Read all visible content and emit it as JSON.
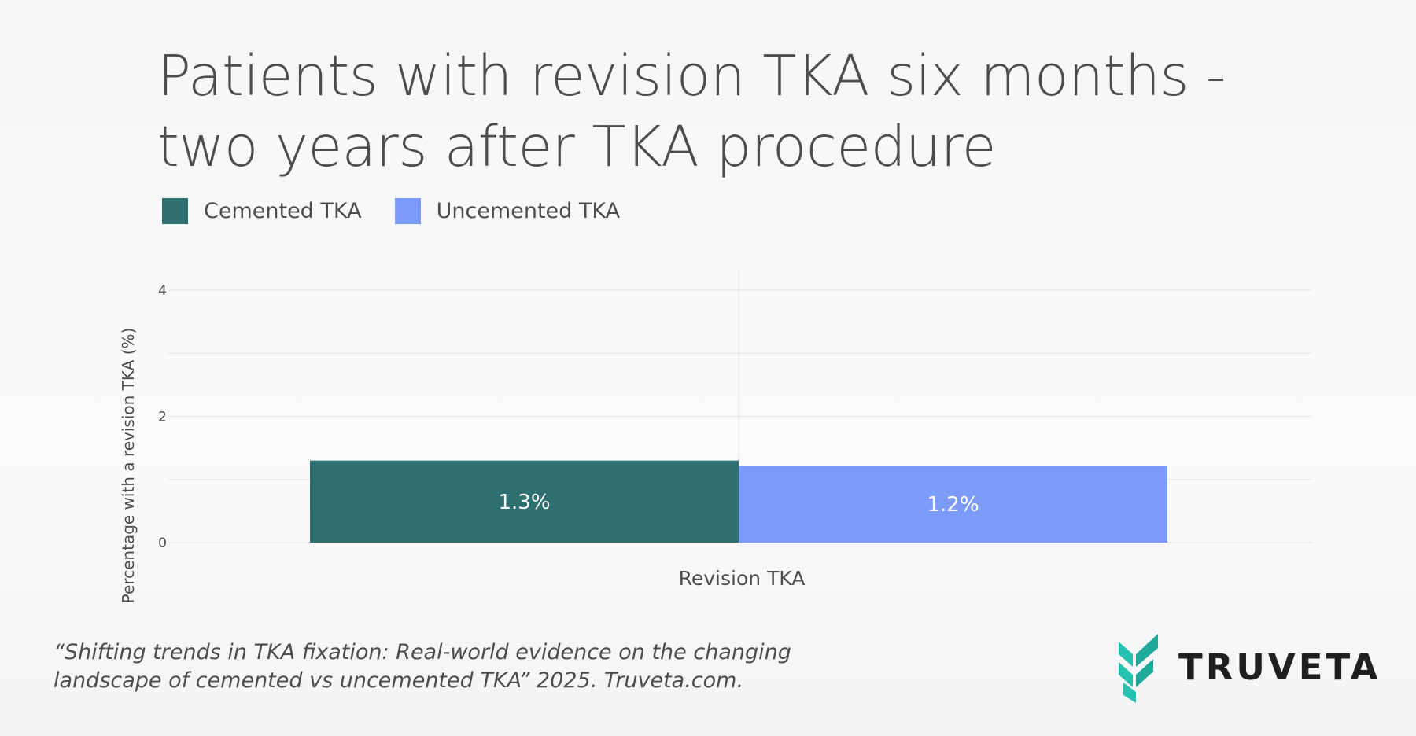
{
  "chart_data": {
    "type": "bar",
    "title": "Patients with revision TKA six months - two years after TKA procedure",
    "title_lines": [
      "Patients with revision TKA six months -",
      "two years after TKA procedure"
    ],
    "categories": [
      "Revision TKA"
    ],
    "series": [
      {
        "name": "Cemented TKA",
        "values": [
          1.3
        ],
        "labels": [
          "1.3%"
        ],
        "color": "#2e7070"
      },
      {
        "name": "Uncemented TKA",
        "values": [
          1.22
        ],
        "labels": [
          "1.2%"
        ],
        "color": "#7b9afa"
      }
    ],
    "xlabel": "",
    "ylabel": "Percentage with a revision TKA (%)",
    "ylim": [
      0,
      4.3
    ],
    "yticks": [
      0,
      2,
      4
    ],
    "grid": true,
    "legend_position": "top-left"
  },
  "citation": {
    "line1": "“Shifting trends in TKA fixation: Real-world evidence on the changing",
    "line2": "landscape of cemented vs uncemented TKA” 2025. Truveta.com."
  },
  "brand": {
    "name": "TRUVETA",
    "icon": "truveta-leaf-icon",
    "icon_color": "#26c2b0"
  }
}
